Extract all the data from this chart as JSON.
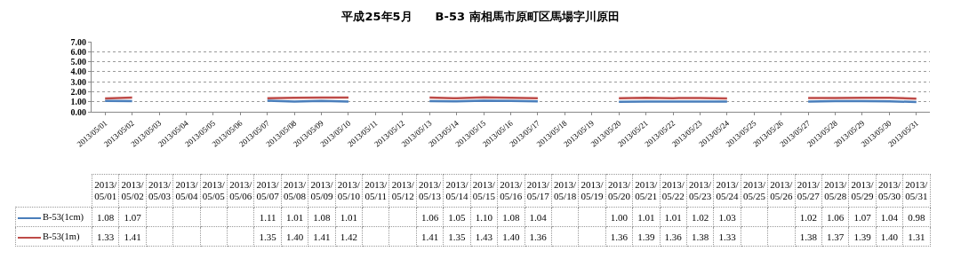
{
  "chart_data": {
    "type": "line",
    "title": "平成25年5月　　B-53 南相馬市原町区馬場字川原田",
    "categories": [
      "2013/05/01",
      "2013/05/02",
      "2013/05/03",
      "2013/05/04",
      "2013/05/05",
      "2013/05/06",
      "2013/05/07",
      "2013/05/08",
      "2013/05/09",
      "2013/05/10",
      "2013/05/11",
      "2013/05/12",
      "2013/05/13",
      "2013/05/14",
      "2013/05/15",
      "2013/05/16",
      "2013/05/17",
      "2013/05/18",
      "2013/05/19",
      "2013/05/20",
      "2013/05/21",
      "2013/05/22",
      "2013/05/23",
      "2013/05/24",
      "2013/05/25",
      "2013/05/26",
      "2013/05/27",
      "2013/05/28",
      "2013/05/29",
      "2013/05/30",
      "2013/05/31"
    ],
    "series": [
      {
        "name": "B-53(1cm)",
        "color": "#4a7ebb",
        "values": [
          1.08,
          1.07,
          null,
          null,
          null,
          null,
          1.11,
          1.01,
          1.08,
          1.01,
          null,
          null,
          1.06,
          1.05,
          1.1,
          1.08,
          1.04,
          null,
          null,
          1.0,
          1.01,
          1.01,
          1.02,
          1.03,
          null,
          null,
          1.02,
          1.06,
          1.07,
          1.04,
          0.98
        ],
        "value_labels": [
          "1.08",
          "1.07",
          null,
          null,
          null,
          null,
          "1.11",
          "1.01",
          "1.08",
          "1.01",
          null,
          null,
          "1.06",
          "1.05",
          "1.10",
          "1.08",
          "1.04",
          null,
          null,
          "1.00",
          "1.01",
          "1.01",
          "1.02",
          "1.03",
          null,
          null,
          "1.02",
          "1.06",
          "1.07",
          "1.04",
          "0.98"
        ]
      },
      {
        "name": "B-53(1m)",
        "color": "#be4b48",
        "values": [
          1.33,
          1.41,
          null,
          null,
          null,
          null,
          1.35,
          1.4,
          1.41,
          1.42,
          null,
          null,
          1.41,
          1.35,
          1.43,
          1.4,
          1.36,
          null,
          null,
          1.36,
          1.39,
          1.36,
          1.38,
          1.33,
          null,
          null,
          1.38,
          1.37,
          1.39,
          1.4,
          1.31
        ],
        "value_labels": [
          "1.33",
          "1.41",
          null,
          null,
          null,
          null,
          "1.35",
          "1.40",
          "1.41",
          "1.42",
          null,
          null,
          "1.41",
          "1.35",
          "1.43",
          "1.40",
          "1.36",
          null,
          null,
          "1.36",
          "1.39",
          "1.36",
          "1.38",
          "1.33",
          null,
          null,
          "1.38",
          "1.37",
          "1.39",
          "1.40",
          "1.31"
        ]
      }
    ],
    "ylim": [
      0,
      7
    ],
    "yticks": [
      {
        "value": 0,
        "label": "0.00"
      },
      {
        "value": 1,
        "label": "1.00"
      },
      {
        "value": 2,
        "label": "2.00"
      },
      {
        "value": 3,
        "label": "3.00"
      },
      {
        "value": 4,
        "label": "4.00"
      },
      {
        "value": 5,
        "label": "5.00"
      },
      {
        "value": 6,
        "label": "6.00"
      },
      {
        "value": 7,
        "label": "7.00"
      }
    ],
    "grid": "y",
    "legend": "bottom left",
    "marker": "none",
    "line_style": "solid"
  }
}
